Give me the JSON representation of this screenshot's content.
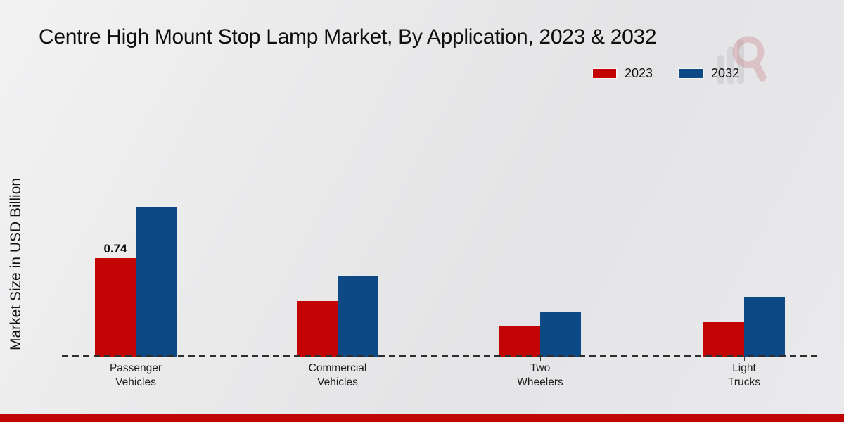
{
  "title": "Centre High Mount Stop Lamp Market, By Application, 2023 & 2032",
  "ylabel": "Market Size in USD Billion",
  "legend": {
    "items": [
      {
        "label": "2023",
        "color": "#c40404"
      },
      {
        "label": "2032",
        "color": "#0d4a85"
      }
    ]
  },
  "chart_data": {
    "type": "bar",
    "title": "Centre High Mount Stop Lamp Market, By Application, 2023 & 2032",
    "categories": [
      "Passenger Vehicles",
      "Commercial Vehicles",
      "Two Wheelers",
      "Light Trucks"
    ],
    "series": [
      {
        "name": "2023",
        "color": "#c40404",
        "values": [
          0.74,
          0.42,
          0.23,
          0.26
        ]
      },
      {
        "name": "2032",
        "color": "#0d4a85",
        "values": [
          1.12,
          0.6,
          0.34,
          0.45
        ]
      }
    ],
    "data_labels": [
      {
        "series_index": 0,
        "group_index": 0,
        "text": "0.74"
      }
    ],
    "xlabel": "",
    "ylabel": "Market Size in USD Billion",
    "ylim": [
      0,
      1.3
    ],
    "grid": false,
    "legend_position": "top-right",
    "baseline_style": "dashed"
  },
  "colors": {
    "bar_2023": "#c40404",
    "bar_2032": "#0d4a85",
    "footer_bar": "#c10505",
    "baseline": "#2e2e2e",
    "background": "#e9e9ea",
    "text": "#111111"
  }
}
